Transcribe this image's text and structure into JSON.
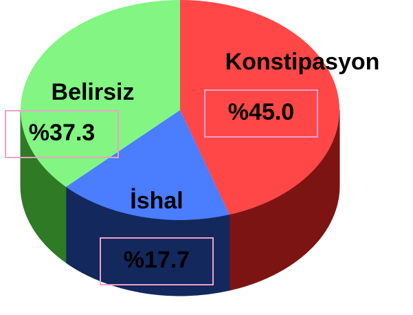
{
  "chart_data": {
    "type": "pie",
    "categories": [
      "Konstipasyon",
      "İshal",
      "Belirsiz"
    ],
    "values": [
      45.0,
      17.7,
      37.3
    ],
    "value_labels": [
      "%45.0",
      "%17.7",
      "%37.3"
    ],
    "colors": [
      "#ff4747",
      "#4a7dff",
      "#82f582"
    ],
    "side_colors": [
      "#7d1414",
      "#13285c",
      "#2f7a25"
    ]
  }
}
